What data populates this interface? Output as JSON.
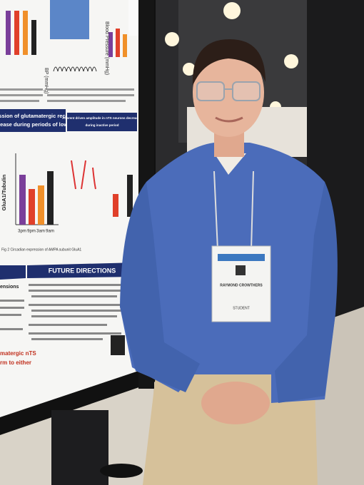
{
  "poster": {
    "heading_line_1": "Expression of glutamatergic receptors",
    "heading_line_2": "decrease during periods of low BP",
    "side_heading_line_1": "Afferent driven amplitude in nTS neurons decreases",
    "side_heading_line_2": "during inactive period",
    "y_axis_label": "GluA1/Tubulin",
    "x_labels": [
      "3pm",
      "9pm",
      "3am",
      "9am"
    ],
    "bp_axis_label": "Blood Pressure (mmHg)",
    "bp_trace_label": "BP (mmHg)",
    "figure_caption": "Fig 2 Circadian expression of AMPA subunit GluA1",
    "section_heading": "FUTURE DIRECTIONS",
    "left_fragment_1": "ensions",
    "left_fragment_2": "matergic nTS",
    "left_fragment_3": "rm to either"
  },
  "badge": {
    "name": "RAYMOND CROWTHERS",
    "role": "STUDENT"
  }
}
